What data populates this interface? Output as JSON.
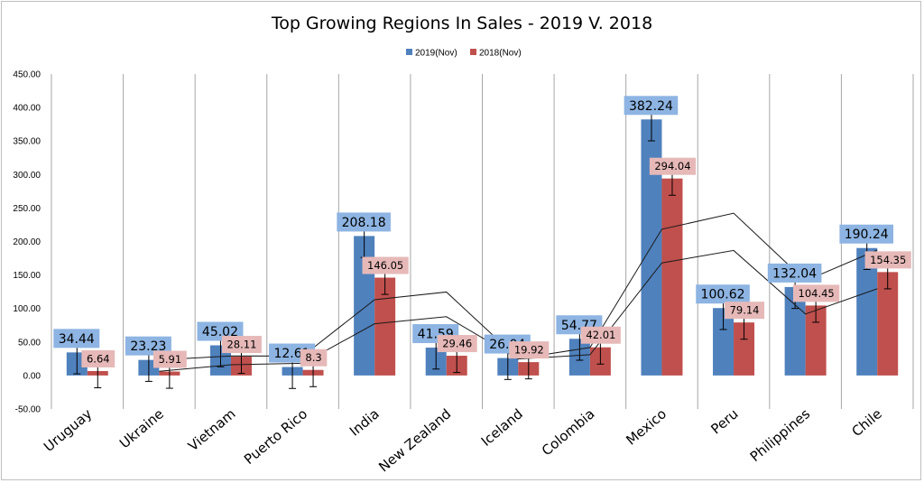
{
  "chart_data": {
    "type": "bar",
    "title": "Top Growing Regions In Sales - 2019 V. 2018",
    "xlabel": "",
    "ylabel": "",
    "categories": [
      "Uruguay",
      "Ukraine",
      "Vietnam",
      "Puerto Rico",
      "India",
      "New Zealand",
      "Iceland",
      "Colombia",
      "Mexico",
      "Peru",
      "Philippines",
      "Chile"
    ],
    "series": [
      {
        "name": "2019(Nov)",
        "color": "#4f81bd",
        "label_bg": "#8db4e2",
        "values": [
          34.44,
          23.23,
          45.02,
          12.61,
          208.18,
          41.59,
          26.04,
          54.77,
          382.24,
          100.62,
          132.04,
          190.24
        ],
        "data_labels": [
          "34.44",
          "23.23",
          "45.02",
          "12.61",
          "208.18",
          "41.59",
          "26.04",
          "54.77",
          "382.24",
          "100.62",
          "132.04",
          "190.24"
        ],
        "error_bars": [
          32,
          32,
          32,
          32,
          32,
          32,
          32,
          32,
          32,
          32,
          32,
          32
        ]
      },
      {
        "name": "2018(Nov)",
        "color": "#c0504d",
        "label_bg": "#e6b9b8",
        "values": [
          6.64,
          5.91,
          28.11,
          8.3,
          146.05,
          29.46,
          19.92,
          42.01,
          294.04,
          79.14,
          104.45,
          154.35
        ],
        "data_labels": [
          "6.64",
          "5.91",
          "28.11",
          "8.3",
          "146.05",
          "29.46",
          "19.92",
          "42.01",
          "294.04",
          "79.14",
          "104.45",
          "154.35"
        ],
        "error_bars": [
          25,
          25,
          25,
          25,
          25,
          25,
          25,
          25,
          25,
          25,
          25,
          25
        ]
      }
    ],
    "trendlines": [
      {
        "values": [
          null,
          23.23,
          29.13,
          29.03,
          113.12,
          124.59,
          25.12,
          41.76,
          218.3,
          242.24,
          141.3,
          187.19
        ]
      },
      {
        "values": [
          null,
          6.28,
          16.01,
          18.2,
          77.18,
          87.76,
          24.69,
          30.97,
          168.0,
          186.6,
          91.8,
          129.4
        ]
      }
    ],
    "ylim": [
      -50,
      450
    ],
    "yticks": [
      "-50.00",
      "0.00",
      "50.00",
      "100.00",
      "150.00",
      "200.00",
      "250.00",
      "300.00",
      "350.00",
      "400.00",
      "450.00"
    ],
    "grid": {
      "vertical": true,
      "horizontal": false
    },
    "legend": "top-center"
  }
}
